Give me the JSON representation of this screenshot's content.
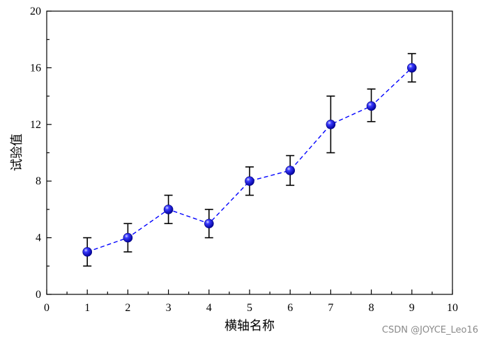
{
  "chart_data": {
    "type": "line",
    "title": "",
    "xlabel": "横轴名称",
    "ylabel": "试验值",
    "xlim": [
      0,
      10
    ],
    "ylim": [
      0,
      20
    ],
    "x_ticks": [
      0,
      1,
      2,
      3,
      4,
      5,
      6,
      7,
      8,
      9,
      10
    ],
    "y_ticks": [
      0,
      4,
      8,
      12,
      16,
      20
    ],
    "grid": false,
    "colors": {
      "line": "#0000ff",
      "marker": "#0000ee",
      "error_bar": "#000000"
    },
    "series": [
      {
        "x": [
          1,
          2,
          3,
          4,
          5,
          6,
          7,
          8,
          9
        ],
        "y": [
          3,
          4,
          6,
          5,
          8,
          8.75,
          12,
          13.3,
          16
        ],
        "err_low": [
          2,
          3,
          5,
          4,
          7,
          7.7,
          10,
          12.2,
          15
        ],
        "err_high": [
          4,
          5,
          7,
          6,
          9,
          9.8,
          14,
          14.5,
          17
        ],
        "line_style": "dashed",
        "marker": "sphere"
      }
    ]
  },
  "watermark": "CSDN @JOYCE_Leo16"
}
